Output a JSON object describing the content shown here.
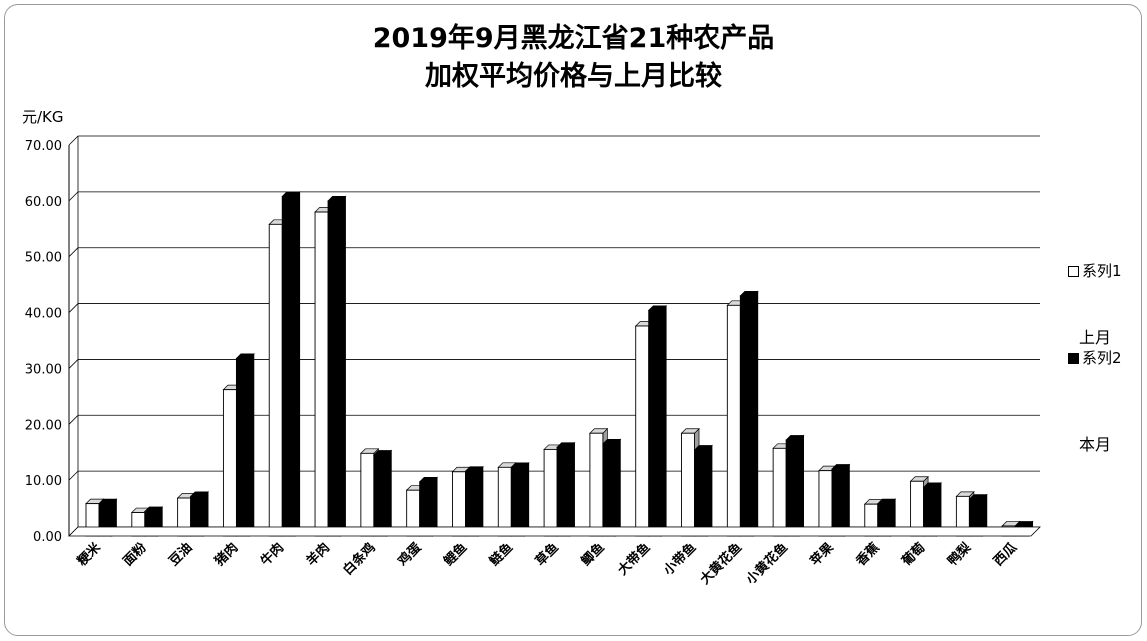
{
  "chart_data": {
    "type": "bar",
    "title_lines": [
      "2019年9月黑龙江省21种农产品",
      "加权平均价格与上月比较"
    ],
    "ylabel": "元/KG",
    "ylim": [
      0,
      70
    ],
    "yticks": [
      "0.00",
      "10.00",
      "20.00",
      "30.00",
      "40.00",
      "50.00",
      "60.00",
      "70.00"
    ],
    "grid": true,
    "legend_position": "right",
    "categories": [
      "粳米",
      "面粉",
      "豆油",
      "猪肉",
      "牛肉",
      "羊肉",
      "白条鸡",
      "鸡蛋",
      "鲤鱼",
      "鲢鱼",
      "草鱼",
      "鲫鱼",
      "大带鱼",
      "小带鱼",
      "大黄花鱼",
      "小黄花鱼",
      "苹果",
      "香蕉",
      "葡萄",
      "鸭梨",
      "西瓜"
    ],
    "series": [
      {
        "name": "系列1",
        "color": "#ffffff",
        "values": [
          5.8,
          4.2,
          6.8,
          26.2,
          55.8,
          58.0,
          14.8,
          8.2,
          11.5,
          12.3,
          15.5,
          18.4,
          37.6,
          18.4,
          41.3,
          15.7,
          11.7,
          5.7,
          9.8,
          7.1,
          1.8
        ]
      },
      {
        "name": "系列2",
        "color": "#000000",
        "values": [
          5.8,
          4.4,
          7.1,
          31.8,
          60.8,
          60.0,
          14.5,
          9.7,
          11.6,
          12.3,
          15.9,
          16.5,
          40.4,
          15.4,
          43.0,
          17.2,
          12.0,
          5.8,
          8.7,
          6.6,
          1.8
        ]
      }
    ]
  },
  "legend": {
    "items": [
      {
        "label": "系列1",
        "swatch": "#ffffff"
      },
      {
        "label": "系列2",
        "swatch": "#000000"
      }
    ],
    "notes": [
      "上月",
      "本月"
    ]
  }
}
